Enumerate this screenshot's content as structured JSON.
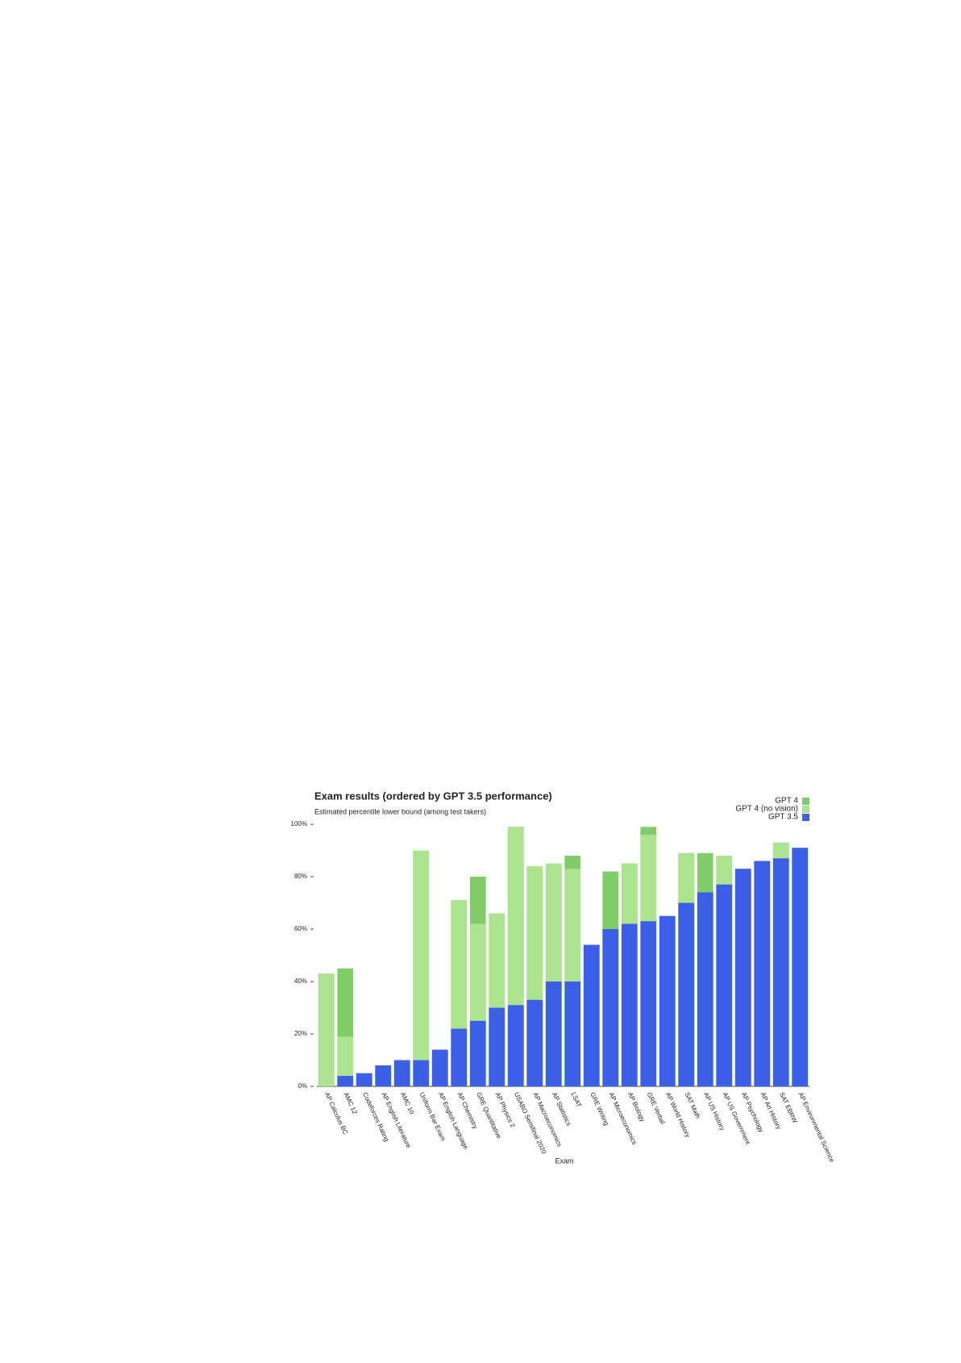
{
  "chart_data": {
    "type": "bar",
    "title": "Exam results (ordered by GPT 3.5 performance)",
    "subtitle": "Estimated percentile lower bound (among test takers)",
    "x_label": "Exam",
    "categories": [
      "AP Calculus BC",
      "AMC 12",
      "Codeforces Rating",
      "AP English Literature",
      "AMC 10",
      "Uniform Bar Exam",
      "AP English Language",
      "AP Chemistry",
      "GRE Quantitative",
      "AP Physics 2",
      "USABO Semifinal 2020",
      "AP Macroeconomics",
      "AP Statistics",
      "LSAT",
      "GRE Writing",
      "AP Microeconomics",
      "AP Biology",
      "GRE Verbal",
      "AP World History",
      "SAT Math",
      "AP US History",
      "AP US Government",
      "AP Psychology",
      "AP Art History",
      "SAT EBRW",
      "AP Environmental Science"
    ],
    "series": [
      {
        "name": "GPT 4",
        "color": "#7fcc68",
        "values": [
          43,
          45,
          5,
          8,
          10,
          90,
          14,
          71,
          80,
          66,
          99,
          84,
          85,
          88,
          54,
          82,
          85,
          99,
          65,
          89,
          89,
          88,
          83,
          86,
          93,
          91
        ]
      },
      {
        "name": "GPT 4 (no vision)",
        "color": "#abe38f",
        "values": [
          43,
          19,
          5,
          8,
          10,
          90,
          14,
          71,
          62,
          66,
          99,
          84,
          85,
          83,
          54,
          60,
          85,
          96,
          65,
          89,
          74,
          88,
          83,
          86,
          93,
          91
        ]
      },
      {
        "name": "GPT 3.5",
        "color": "#3b5fe6",
        "values": [
          0,
          4,
          5,
          8,
          10,
          10,
          14,
          22,
          25,
          30,
          31,
          33,
          40,
          40,
          54,
          60,
          62,
          63,
          65,
          70,
          74,
          77,
          83,
          86,
          87,
          91
        ]
      }
    ],
    "ylim": [
      0,
      100
    ],
    "yticks": [
      {
        "value": 0,
        "label": "0%"
      },
      {
        "value": 20,
        "label": "20%"
      },
      {
        "value": 40,
        "label": "40%"
      },
      {
        "value": 60,
        "label": "60%"
      },
      {
        "value": 80,
        "label": "80%"
      },
      {
        "value": 100,
        "label": "100%"
      }
    ],
    "legend": "top-right"
  }
}
